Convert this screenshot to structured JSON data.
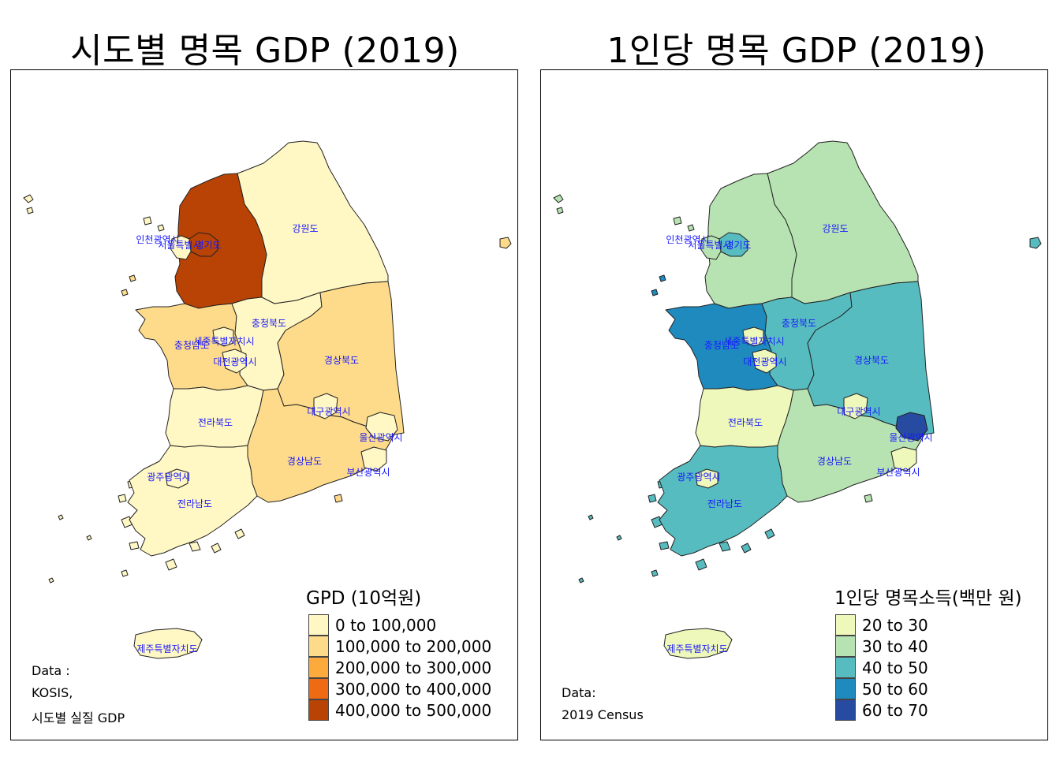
{
  "left": {
    "title": "시도별 명목 GDP (2019)",
    "legend_title": "GPD (10억원)",
    "legend": [
      {
        "label": "0 to 100,000",
        "color": "#FFF7C4"
      },
      {
        "label": "100,000 to 200,000",
        "color": "#FEDB8A"
      },
      {
        "label": "200,000 to 300,000",
        "color": "#FDAA3C"
      },
      {
        "label": "300,000 to 400,000",
        "color": "#EE6B14"
      },
      {
        "label": "400,000 to 500,000",
        "color": "#B84304"
      }
    ],
    "source_lines": [
      "Data :",
      "KOSIS,",
      "시도별 실질 GDP"
    ],
    "region_colors": {
      "gyeonggi": "#B84304",
      "gangwon": "#FFF7C4",
      "chungbuk": "#FFF7C4",
      "chungnam": "#FEDB8A",
      "jeonbuk": "#FFF7C4",
      "jeonnam": "#FFF7C4",
      "gyeongbuk": "#FEDB8A",
      "gyeongnam": "#FEDB8A",
      "jeju": "#FFF7C4",
      "seoul": "#B84304",
      "incheon": "#FFF7C4",
      "sejong": "#FFF7C4",
      "daejeon": "#FFF7C4",
      "daegu": "#FFF7C4",
      "ulsan": "#FFF7C4",
      "busan": "#FFF7C4",
      "gwangju": "#FFF7C4",
      "dokdo": "#FEDB8A"
    }
  },
  "right": {
    "title": "1인당 명목 GDP (2019)",
    "legend_title": "1인당 명목소득(백만 원)",
    "legend": [
      {
        "label": "20 to 30",
        "color": "#EEF8BB"
      },
      {
        "label": "30 to 40",
        "color": "#B7E2B1"
      },
      {
        "label": "40 to 50",
        "color": "#57BCC0"
      },
      {
        "label": "50 to 60",
        "color": "#1F8ABE"
      },
      {
        "label": "60 to 70",
        "color": "#264BA0"
      }
    ],
    "source_lines": [
      "Data:",
      "2019 Census"
    ],
    "region_colors": {
      "gyeonggi": "#B7E2B1",
      "gangwon": "#B7E2B1",
      "chungbuk": "#57BCC0",
      "chungnam": "#1F8ABE",
      "jeonbuk": "#EEF8BB",
      "jeonnam": "#57BCC0",
      "gyeongbuk": "#57BCC0",
      "gyeongnam": "#B7E2B1",
      "jeju": "#EEF8BB",
      "seoul": "#57BCC0",
      "incheon": "#B7E2B1",
      "sejong": "#EEF8BB",
      "daejeon": "#EEF8BB",
      "daegu": "#EEF8BB",
      "ulsan": "#264BA0",
      "busan": "#EEF8BB",
      "gwangju": "#EEF8BB",
      "dokdo": "#57BCC0"
    }
  },
  "region_labels": {
    "gangwon": "강원도",
    "incheon": "인천광역시",
    "seoul": "서울특별시",
    "gyeonggi": "경기도",
    "chungbuk": "충청북도",
    "sejong": "세종특별자치시",
    "chungnam": "충청남도",
    "daejeon": "대전광역시",
    "gyeongbuk": "경상북도",
    "daegu": "대구광역시",
    "jeonbuk": "전라북도",
    "ulsan": "울산광역시",
    "gyeongnam": "경상남도",
    "busan": "부산광역시",
    "gwangju": "광주광역시",
    "jeonnam": "전라남도",
    "jeju": "제주특별자치도"
  }
}
